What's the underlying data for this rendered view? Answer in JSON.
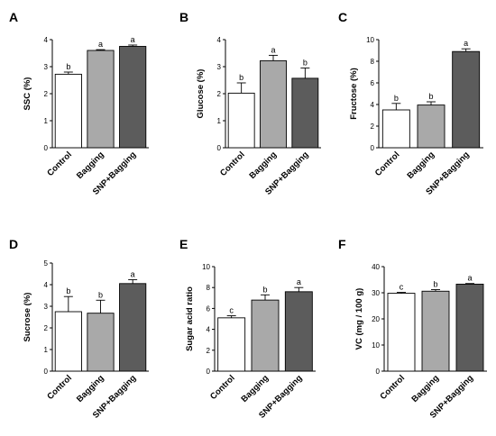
{
  "colors": {
    "Control": "#ffffff",
    "Bagging": "#a9a9a9",
    "SNP+Bagging": "#5c5c5c"
  },
  "chart_data": [
    {
      "panel": "A",
      "type": "bar",
      "categories": [
        "Control",
        "Bagging",
        "SNP+Bagging"
      ],
      "values": [
        2.72,
        3.6,
        3.75
      ],
      "errors": [
        0.08,
        0.03,
        0.05
      ],
      "letters": [
        "b",
        "a",
        "a"
      ],
      "ylabel": "SSC (%)",
      "ylim": [
        0,
        4
      ],
      "yticks": [
        0,
        1,
        2,
        3,
        4
      ]
    },
    {
      "panel": "B",
      "type": "bar",
      "categories": [
        "Control",
        "Bagging",
        "SNP+Bagging"
      ],
      "values": [
        2.02,
        3.22,
        2.57
      ],
      "errors": [
        0.38,
        0.2,
        0.38
      ],
      "letters": [
        "b",
        "a",
        "b"
      ],
      "ylabel": "Glucose (%)",
      "ylim": [
        0,
        4
      ],
      "yticks": [
        0,
        1,
        2,
        3,
        4
      ]
    },
    {
      "panel": "C",
      "type": "bar",
      "categories": [
        "Control",
        "Bagging",
        "SNP+Bagging"
      ],
      "values": [
        3.5,
        3.95,
        8.9
      ],
      "errors": [
        0.6,
        0.3,
        0.25
      ],
      "letters": [
        "b",
        "b",
        "a"
      ],
      "ylabel": "Fructose (%)",
      "ylim": [
        0,
        10
      ],
      "yticks": [
        0,
        2,
        4,
        6,
        8,
        10
      ]
    },
    {
      "panel": "D",
      "type": "bar",
      "categories": [
        "Control",
        "Bagging",
        "SNP+Bagging"
      ],
      "values": [
        2.75,
        2.68,
        4.05
      ],
      "errors": [
        0.7,
        0.6,
        0.18
      ],
      "letters": [
        "b",
        "b",
        "a"
      ],
      "ylabel": "Sucrose (%)",
      "ylim": [
        0,
        5
      ],
      "yticks": [
        0,
        1,
        2,
        3,
        4,
        5
      ]
    },
    {
      "panel": "E",
      "type": "bar",
      "categories": [
        "Control",
        "Bagging",
        "SNP+Bagging"
      ],
      "values": [
        5.1,
        6.8,
        7.6
      ],
      "errors": [
        0.2,
        0.5,
        0.4
      ],
      "letters": [
        "c",
        "b",
        "a"
      ],
      "ylabel": "Sugar acid ratio",
      "ylim": [
        0,
        10
      ],
      "yticks": [
        0,
        2,
        4,
        6,
        8,
        10
      ]
    },
    {
      "panel": "F",
      "type": "bar",
      "categories": [
        "Control",
        "Bagging",
        "SNP+Bagging"
      ],
      "values": [
        29.8,
        30.6,
        33.3
      ],
      "errors": [
        0.35,
        0.6,
        0.25
      ],
      "letters": [
        "c",
        "b",
        "a"
      ],
      "ylabel": "VC (mg / 100 g)",
      "ylim": [
        0,
        40
      ],
      "yticks": [
        0,
        10,
        20,
        30,
        40
      ]
    }
  ]
}
